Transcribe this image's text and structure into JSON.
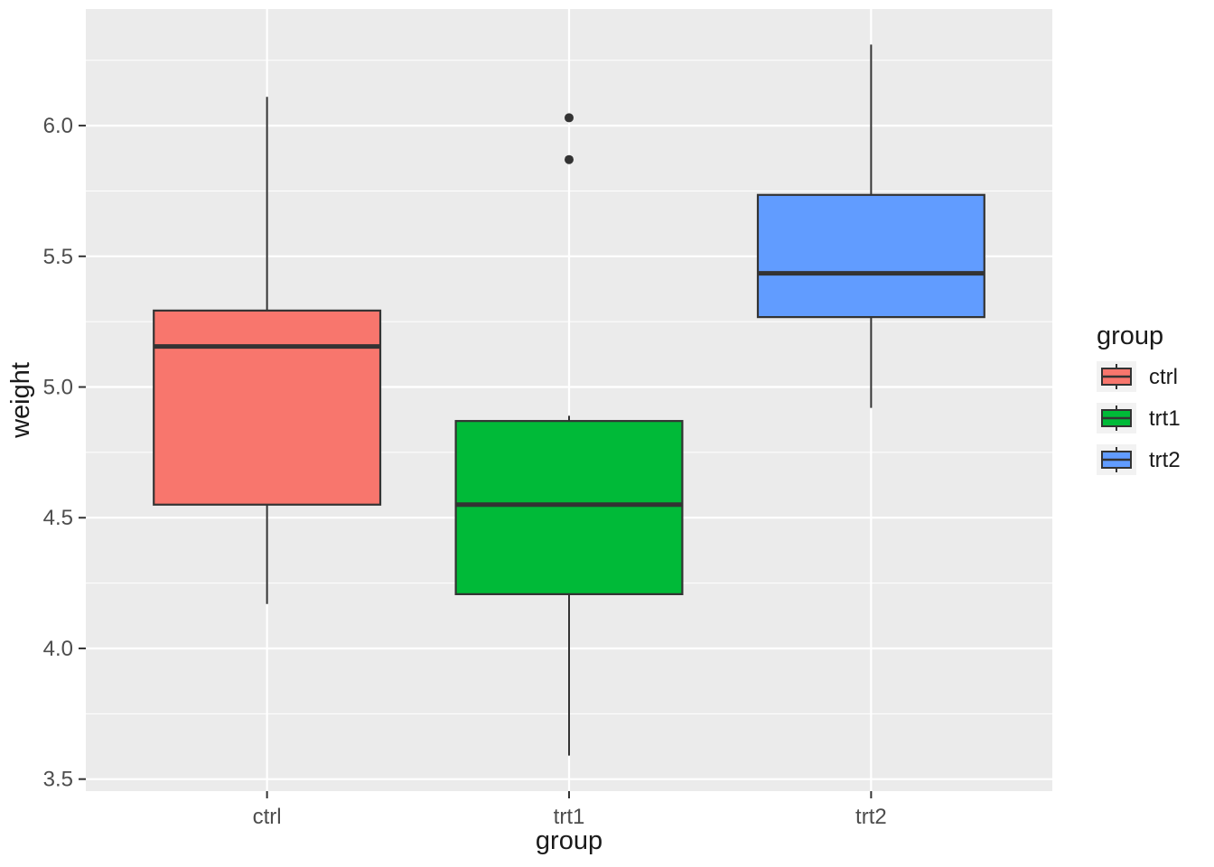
{
  "chart_data": {
    "type": "boxplot",
    "title": "",
    "xlabel": "group",
    "ylabel": "weight",
    "legend_title": "group",
    "legend_position": "right",
    "grid": true,
    "categories": [
      "ctrl",
      "trt1",
      "trt2"
    ],
    "y_ticks": [
      3.5,
      4.0,
      4.5,
      5.0,
      5.5,
      6.0
    ],
    "y_tick_labels": [
      "3.5",
      "4.0",
      "4.5",
      "5.0",
      "5.5",
      "6.0"
    ],
    "y_minor": [
      3.75,
      4.25,
      4.75,
      5.25,
      5.75,
      6.25
    ],
    "ylim": [
      3.454,
      6.446
    ],
    "series": [
      {
        "name": "ctrl",
        "color": "#F8766D",
        "whisker_low": 4.17,
        "q1": 4.55,
        "median": 5.155,
        "q3": 5.2925,
        "whisker_high": 6.11,
        "outliers": []
      },
      {
        "name": "trt1",
        "color": "#00BA38",
        "whisker_low": 3.59,
        "q1": 4.2075,
        "median": 4.55,
        "q3": 4.87,
        "whisker_high": 4.89,
        "outliers": [
          5.87,
          6.03
        ]
      },
      {
        "name": "trt2",
        "color": "#619CFF",
        "whisker_low": 4.92,
        "q1": 5.2675,
        "median": 5.435,
        "q3": 5.735,
        "whisker_high": 6.31,
        "outliers": []
      }
    ]
  },
  "style": {
    "page_bg": "#FFFFFF",
    "panel_bg": "#EBEBEB",
    "grid_color": "#FFFFFF",
    "box_outline": "#333333",
    "tick_color": "#333333",
    "axis_text_color": "#4D4D4D",
    "title_color": "#1A1A1A",
    "legend_key_bg": "#F2F2F2"
  }
}
